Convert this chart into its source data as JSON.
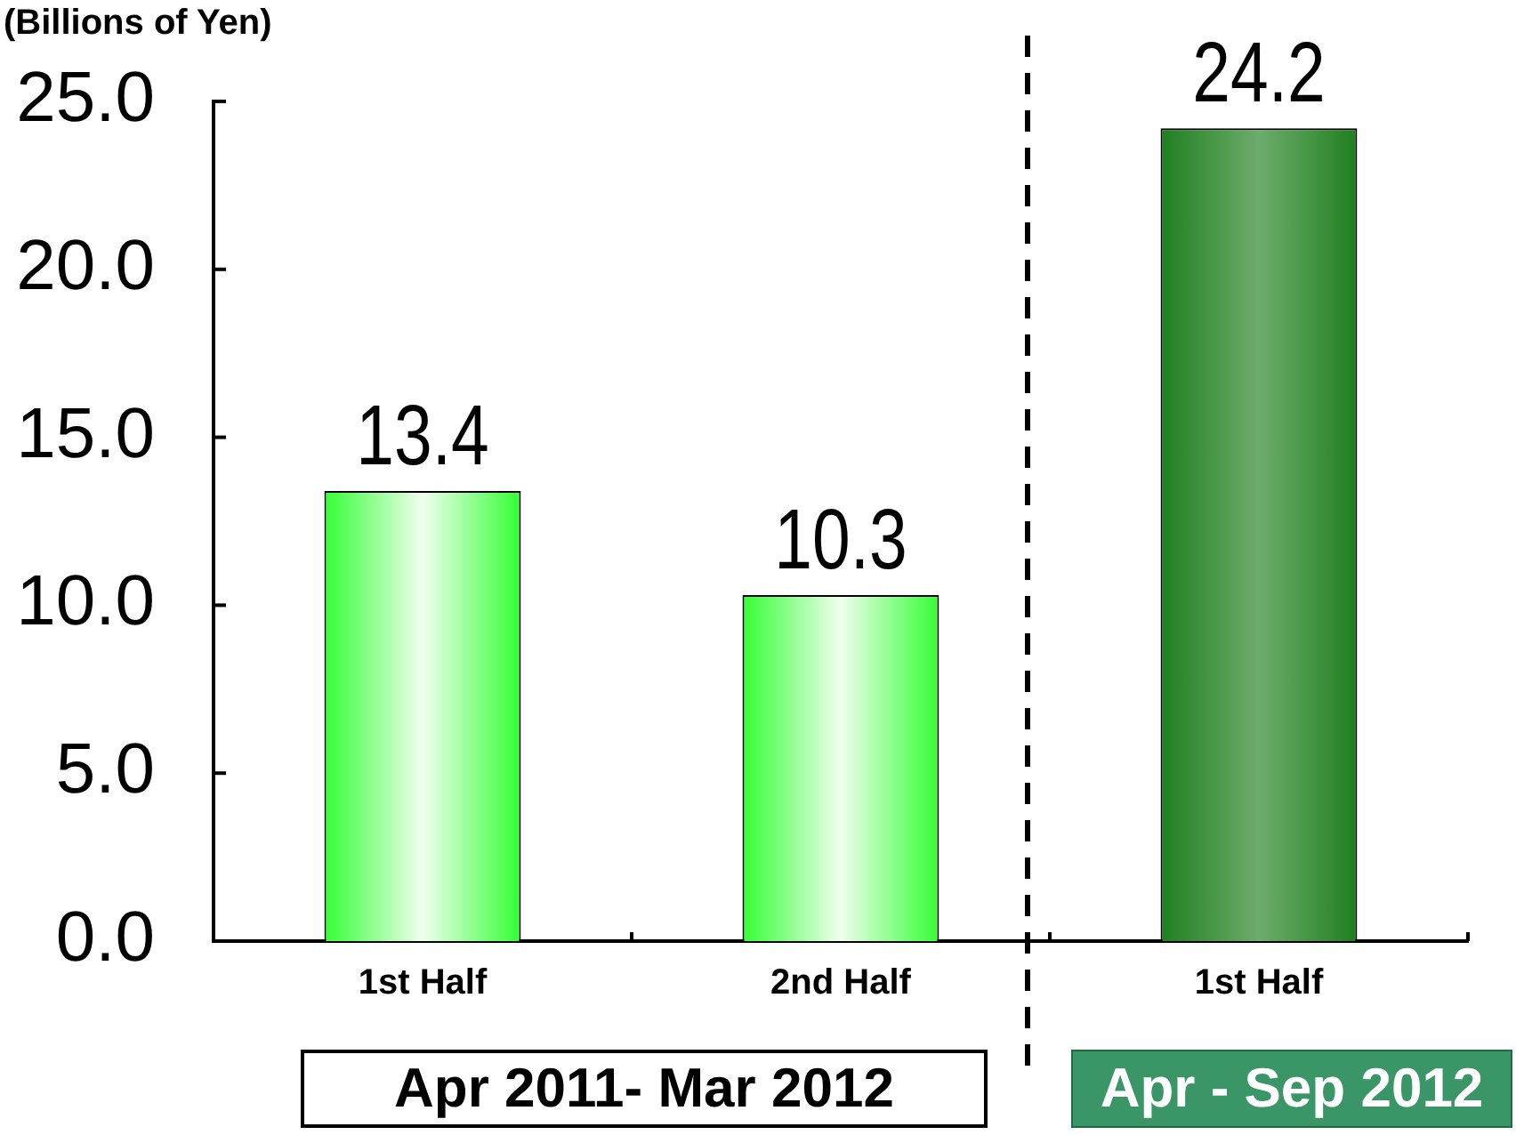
{
  "chart_data": {
    "type": "bar",
    "ylabel": "(Billions of Yen)",
    "categories": [
      "1st Half",
      "2nd Half",
      "1st Half"
    ],
    "values": [
      13.4,
      10.3,
      24.2
    ],
    "colors": [
      "#33ff33",
      "#33ff33",
      "#1f7f1f"
    ],
    "ylim": [
      0,
      25
    ],
    "yticks": [
      {
        "value": 0,
        "label": "0.0"
      },
      {
        "value": 5,
        "label": "5.0"
      },
      {
        "value": 10,
        "label": "10.0"
      },
      {
        "value": 15,
        "label": "15.0"
      },
      {
        "value": 20,
        "label": "20.0"
      },
      {
        "value": 25,
        "label": "25.0"
      }
    ],
    "data_labels": true,
    "grid": false,
    "legend": false,
    "annotations": [
      "Apr 2011- Mar 2012",
      "Apr - Sep 2012"
    ]
  }
}
